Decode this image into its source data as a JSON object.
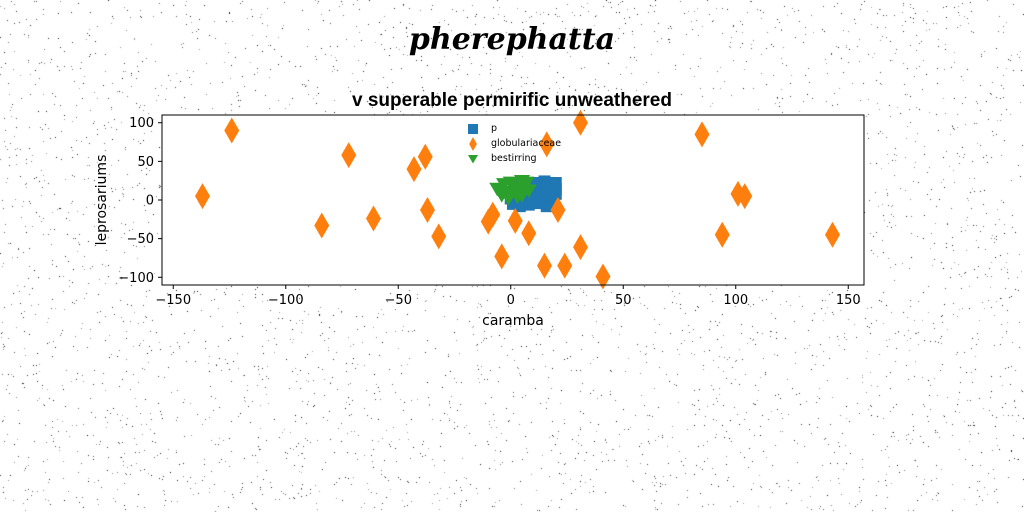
{
  "header": {
    "title": "pherephatta"
  },
  "chart_data": {
    "type": "scatter",
    "title": "v superable permirific unweathered",
    "xlabel": "caramba",
    "ylabel": "leprosariums",
    "xlim": [
      -155,
      157
    ],
    "ylim": [
      -110,
      110
    ],
    "xticks": [
      -150,
      -100,
      -50,
      0,
      50,
      100,
      150
    ],
    "yticks": [
      -100,
      -50,
      0,
      50,
      100
    ],
    "xtick_labels": [
      "−150",
      "−100",
      "−50",
      "0",
      "50",
      "100",
      "150"
    ],
    "ytick_labels": [
      "−100",
      "−50",
      "0",
      "50",
      "100"
    ],
    "grid": false,
    "legend_position": "top-center",
    "series": [
      {
        "name": "p",
        "color": "#1f77b4",
        "marker": "square",
        "points": [
          [
            -2,
            10
          ],
          [
            0,
            2
          ],
          [
            1,
            -5
          ],
          [
            2,
            20
          ],
          [
            3,
            14
          ],
          [
            4,
            6
          ],
          [
            4,
            -8
          ],
          [
            5,
            24
          ],
          [
            6,
            12
          ],
          [
            7,
            0
          ],
          [
            8,
            -6
          ],
          [
            9,
            18
          ],
          [
            10,
            22
          ],
          [
            11,
            8
          ],
          [
            12,
            -4
          ],
          [
            13,
            16
          ],
          [
            14,
            2
          ],
          [
            15,
            24
          ],
          [
            16,
            -8
          ],
          [
            17,
            10
          ],
          [
            18,
            18
          ],
          [
            19,
            0
          ],
          [
            19,
            -6
          ],
          [
            20,
            22
          ],
          [
            20,
            8
          ],
          [
            20,
            14
          ],
          [
            18,
            4
          ],
          [
            10,
            16
          ]
        ]
      },
      {
        "name": "globulariaceae",
        "color": "#ff7f0e",
        "marker": "thin_diamond",
        "points": [
          [
            -124,
            90
          ],
          [
            -72,
            58
          ],
          [
            -38,
            56
          ],
          [
            -43,
            40
          ],
          [
            -137,
            5
          ],
          [
            -84,
            -33
          ],
          [
            -61,
            -24
          ],
          [
            -37,
            -13
          ],
          [
            -32,
            -47
          ],
          [
            -10,
            -28
          ],
          [
            -8,
            -19
          ],
          [
            2,
            -27
          ],
          [
            8,
            -43
          ],
          [
            21,
            -13
          ],
          [
            -4,
            -73
          ],
          [
            15,
            -85
          ],
          [
            24,
            -85
          ],
          [
            31,
            -61
          ],
          [
            41,
            -99
          ],
          [
            16,
            72
          ],
          [
            31,
            100
          ],
          [
            85,
            85
          ],
          [
            101,
            8
          ],
          [
            104,
            5
          ],
          [
            94,
            -45
          ],
          [
            143,
            -45
          ]
        ]
      },
      {
        "name": "bestirring",
        "color": "#2ca02c",
        "marker": "triangle_down",
        "points": [
          [
            -6,
            14
          ],
          [
            -3,
            20
          ],
          [
            0,
            22
          ],
          [
            2,
            16
          ],
          [
            4,
            10
          ],
          [
            5,
            24
          ],
          [
            6,
            18
          ],
          [
            8,
            12
          ],
          [
            3,
            4
          ],
          [
            0,
            10
          ],
          [
            -4,
            6
          ],
          [
            7,
            22
          ],
          [
            -1,
            2
          ],
          [
            5,
            6
          ]
        ]
      }
    ]
  }
}
